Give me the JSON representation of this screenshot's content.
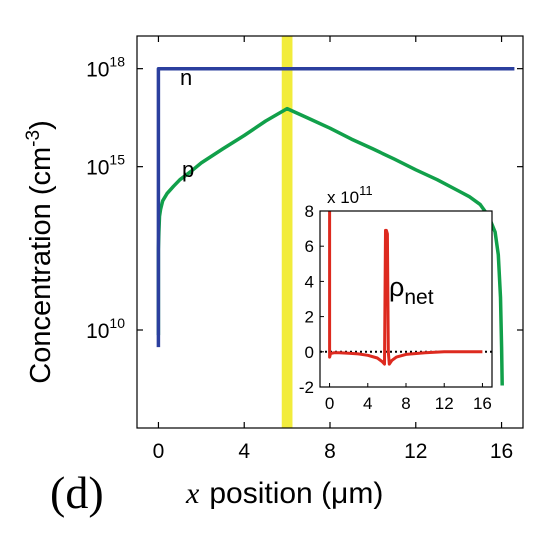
{
  "panel_label": "(d)",
  "colors": {
    "n": "#2b3f9e",
    "p": "#11a04a",
    "rho": "#dd2a1f",
    "band": "#f2ec3c",
    "zero": "#000000"
  },
  "chart_data": [
    {
      "type": "line",
      "title": "",
      "xlabel_italic": "x",
      "xlabel_rest": "position (μm)",
      "ylabel": "Concentration (cm",
      "ylabel_exp": "-3",
      "ylabel_close": ")",
      "yscale": "log",
      "xlim": [
        -1,
        17
      ],
      "ylim": [
        10000000.0,
        1e+19
      ],
      "xticks": [
        0,
        4,
        8,
        12,
        16
      ],
      "yticks": [
        {
          "value": 10000000000.0,
          "base": "10",
          "exp": "10"
        },
        {
          "value": 1000000000000000.0,
          "base": "10",
          "exp": "15"
        },
        {
          "value": 1e+18,
          "base": "10",
          "exp": "18"
        }
      ],
      "highlight_band": {
        "x0": 5.75,
        "x1": 6.25
      },
      "series": [
        {
          "name": "n",
          "x": [
            0,
            0,
            0.05,
            16.6
          ],
          "y": [
            3000000000.0,
            1e+18,
            1e+18,
            1e+18
          ]
        },
        {
          "name": "p",
          "x": [
            0,
            0,
            0.02,
            0.05,
            0.1,
            0.2,
            0.4,
            0.7,
            1,
            1.5,
            2,
            3,
            4,
            5,
            6,
            7,
            8,
            9,
            10,
            11,
            12,
            13,
            14,
            14.5,
            15,
            15.4,
            15.7,
            15.85,
            15.95,
            16,
            16.03
          ],
          "y": [
            7000000000.0,
            3000000000000.0,
            10000000000000.0,
            30000000000000.0,
            50000000000000.0,
            90000000000000.0,
            150000000000000.0,
            250000000000000.0,
            400000000000000.0,
            700000000000000.0,
            1300000000000000.0,
            3500000000000000.0,
            9000000000000000.0,
            2.5e+16,
            6e+16,
            3e+16,
            1.5e+16,
            7000000000000000.0,
            3500000000000000.0,
            1700000000000000.0,
            800000000000000.0,
            400000000000000.0,
            180000000000000.0,
            120000000000000.0,
            70000000000000.0,
            30000000000000.0,
            10000000000000.0,
            2000000000000.0,
            100000000000.0,
            3000000000.0,
            200000000.0
          ]
        }
      ]
    },
    {
      "type": "line",
      "title": "",
      "multiplier_base": "x 10",
      "multiplier_exp": "11",
      "xlim": [
        -1,
        17
      ],
      "ylim": [
        -2,
        8
      ],
      "xticks": [
        0,
        4,
        8,
        12,
        16
      ],
      "yticks": [
        -2,
        0,
        2,
        4,
        6,
        8
      ],
      "zero_line": true,
      "annotation_main": "ρ",
      "annotation_sub": "net",
      "series": [
        {
          "name": "",
          "x": [
            0,
            0,
            0.02,
            0.1,
            0.5,
            1,
            2,
            3,
            4,
            5,
            5.5,
            5.75,
            5.85,
            5.95,
            6.05,
            6.15,
            6.25,
            6.5,
            7,
            8,
            10,
            12,
            14,
            15,
            16
          ],
          "y": [
            8,
            -0.3,
            -0.3,
            -0.1,
            -0.05,
            -0.05,
            -0.08,
            -0.12,
            -0.2,
            -0.35,
            -0.55,
            -0.7,
            6.9,
            6.9,
            6.7,
            0.0,
            -0.7,
            -0.5,
            -0.3,
            -0.15,
            -0.05,
            0.0,
            0.0,
            0.0,
            0.0
          ]
        }
      ]
    }
  ]
}
